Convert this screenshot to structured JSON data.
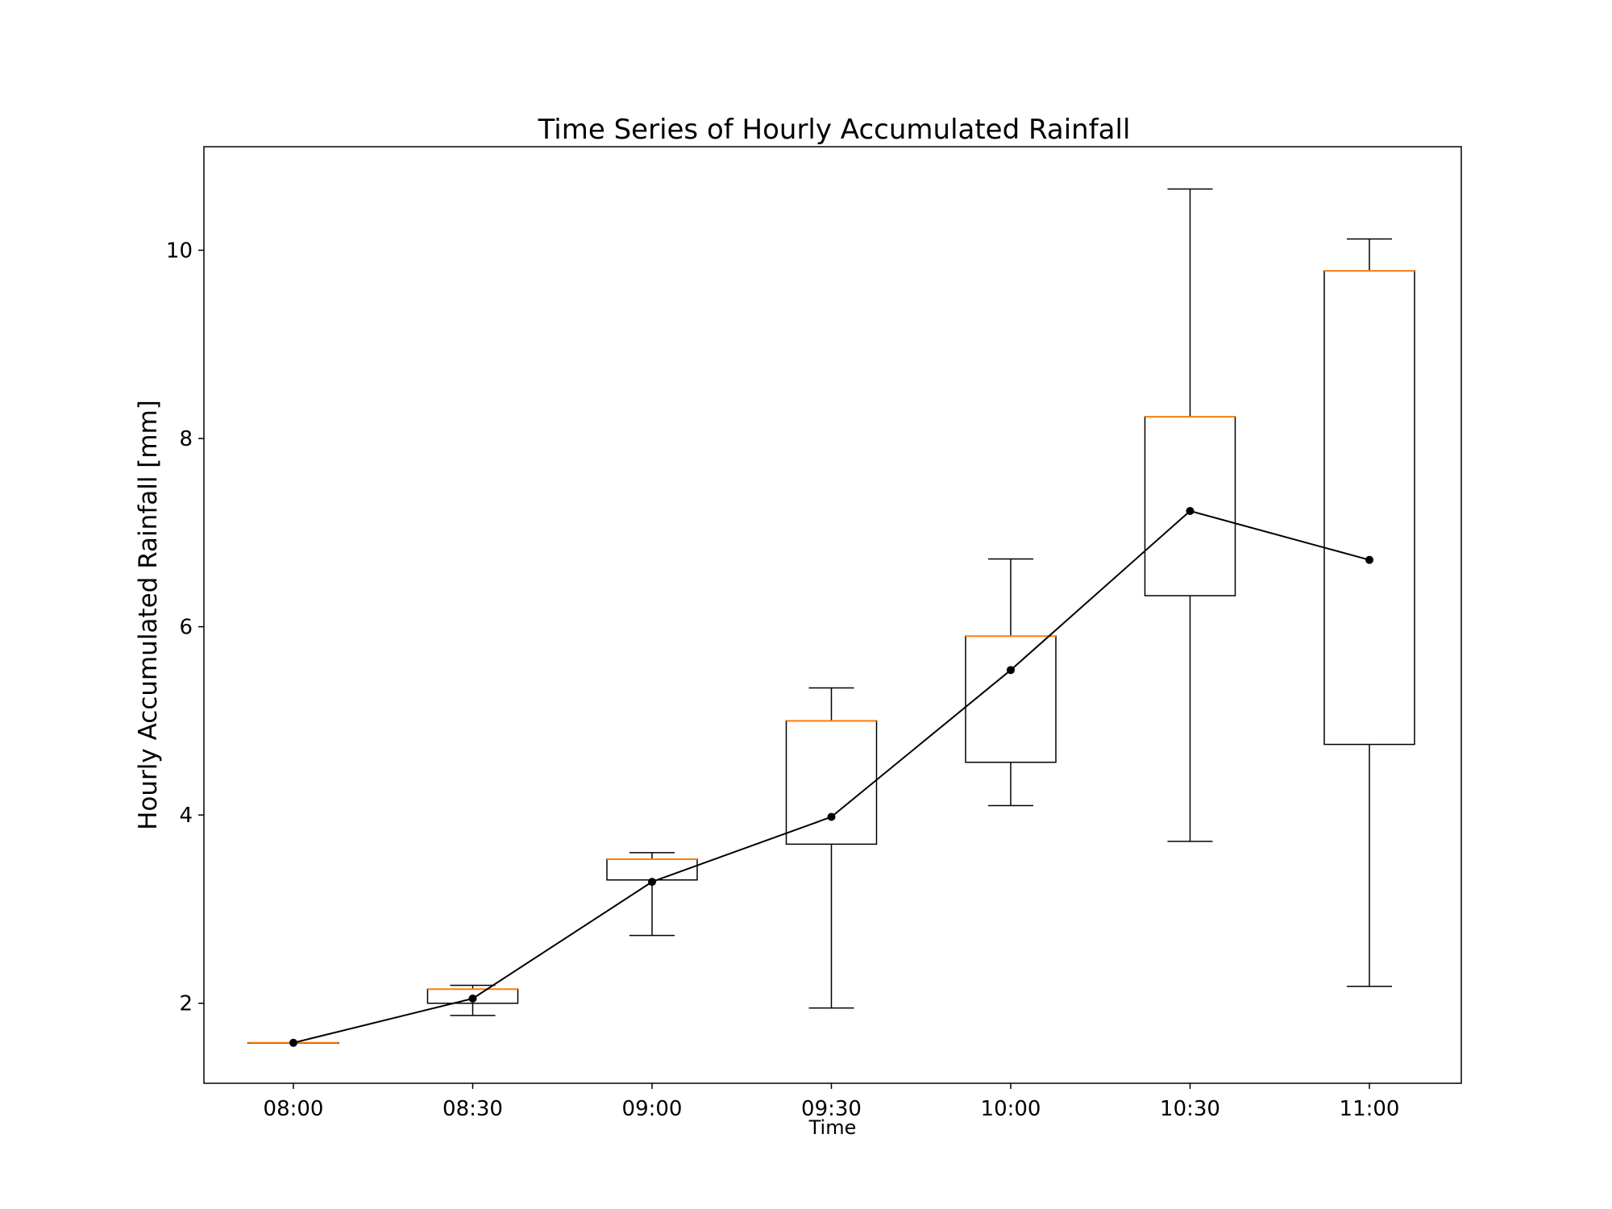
{
  "chart_data": {
    "type": "box",
    "title": "Time Series of Hourly Accumulated Rainfall",
    "xlabel": "Time",
    "ylabel": "Hourly Accumulated Rainfall [mm]",
    "categories": [
      "08:00",
      "08:30",
      "09:00",
      "09:30",
      "10:00",
      "10:30",
      "11:00"
    ],
    "ylim": [
      1.15,
      11.1
    ],
    "yticks": [
      2,
      4,
      6,
      8,
      10
    ],
    "boxes": [
      {
        "whislo": 1.58,
        "q1": 1.58,
        "med": 1.58,
        "q3": 1.58,
        "whishi": 1.58
      },
      {
        "whislo": 1.87,
        "q1": 2.0,
        "med": 2.15,
        "q3": 2.15,
        "whishi": 2.19
      },
      {
        "whislo": 2.72,
        "q1": 3.31,
        "med": 3.53,
        "q3": 3.53,
        "whishi": 3.6
      },
      {
        "whislo": 1.95,
        "q1": 3.69,
        "med": 5.0,
        "q3": 5.0,
        "whishi": 5.35
      },
      {
        "whislo": 4.1,
        "q1": 4.56,
        "med": 5.9,
        "q3": 5.9,
        "whishi": 6.72
      },
      {
        "whislo": 3.72,
        "q1": 6.33,
        "med": 8.23,
        "q3": 8.23,
        "whishi": 10.65
      },
      {
        "whislo": 2.18,
        "q1": 4.75,
        "med": 9.78,
        "q3": 9.78,
        "whishi": 10.12
      }
    ],
    "mean_line": [
      1.58,
      2.05,
      3.29,
      3.98,
      5.54,
      7.23,
      6.71
    ],
    "grid": false,
    "colors": {
      "box": "#000000",
      "median": "#ff7f0e",
      "line": "#000000",
      "marker": "#000000"
    }
  }
}
